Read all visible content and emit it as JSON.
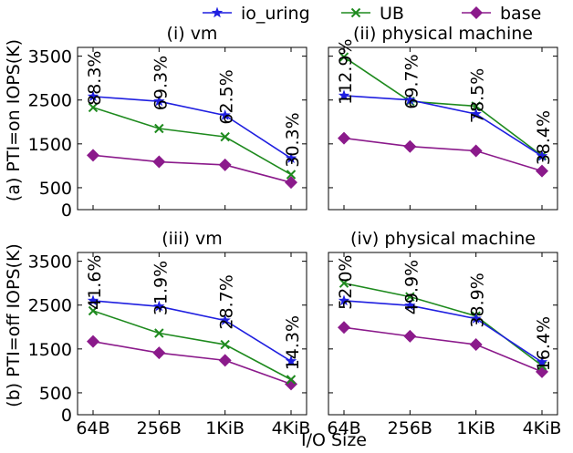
{
  "legend": {
    "placement": "top-center",
    "entries": [
      {
        "label": "io_uring",
        "color": "#1f1fe0",
        "marker": "star"
      },
      {
        "label": "UB",
        "color": "#1e8a1e",
        "marker": "x"
      },
      {
        "label": "base",
        "color": "#8b1a8b",
        "marker": "diamond"
      }
    ]
  },
  "shared": {
    "xlabel": "I/O Size",
    "row_labels": [
      "(a) PTI=on IOPS(K)",
      "(b) PTI=off IOPS(K)"
    ],
    "categories": [
      "64B",
      "256B",
      "1KiB",
      "4KiB"
    ],
    "yticks": [
      0,
      500,
      1500,
      2500,
      3500
    ],
    "ylim": [
      0,
      3700
    ]
  },
  "chart_data": [
    {
      "type": "line",
      "title": "(i) vm",
      "categories": [
        "64B",
        "256B",
        "1KiB",
        "4KiB"
      ],
      "ylim": [
        0,
        3700
      ],
      "series": [
        {
          "name": "io_uring",
          "values": [
            2580,
            2470,
            2150,
            1170
          ]
        },
        {
          "name": "UB",
          "values": [
            2330,
            1850,
            1660,
            800
          ]
        },
        {
          "name": "base",
          "values": [
            1240,
            1090,
            1020,
            620
          ]
        }
      ],
      "annotations": [
        "88.3%",
        "69.3%",
        "62.5%",
        "30.3%"
      ]
    },
    {
      "type": "line",
      "title": "(ii) physical machine",
      "categories": [
        "64B",
        "256B",
        "1KiB",
        "4KiB"
      ],
      "ylim": [
        0,
        3700
      ],
      "series": [
        {
          "name": "io_uring",
          "values": [
            2600,
            2500,
            2180,
            1220
          ]
        },
        {
          "name": "UB",
          "values": [
            3480,
            2470,
            2360,
            1230
          ]
        },
        {
          "name": "base",
          "values": [
            1630,
            1440,
            1340,
            880
          ]
        }
      ],
      "annotations": [
        "112.9%",
        "69.7%",
        "78.5%",
        "38.4%"
      ]
    },
    {
      "type": "line",
      "title": "(iii) vm",
      "categories": [
        "64B",
        "256B",
        "1KiB",
        "4KiB"
      ],
      "ylim": [
        0,
        3700
      ],
      "series": [
        {
          "name": "io_uring",
          "values": [
            2600,
            2470,
            2150,
            1220
          ]
        },
        {
          "name": "UB",
          "values": [
            2370,
            1860,
            1600,
            800
          ]
        },
        {
          "name": "base",
          "values": [
            1670,
            1410,
            1240,
            700
          ]
        }
      ],
      "annotations": [
        "41.6%",
        "31.9%",
        "28.7%",
        "14.3%"
      ]
    },
    {
      "type": "line",
      "title": "(iv) physical machine",
      "categories": [
        "64B",
        "256B",
        "1KiB",
        "4KiB"
      ],
      "ylim": [
        0,
        3700
      ],
      "series": [
        {
          "name": "io_uring",
          "values": [
            2600,
            2490,
            2190,
            1200
          ]
        },
        {
          "name": "UB",
          "values": [
            3000,
            2690,
            2250,
            1120
          ]
        },
        {
          "name": "base",
          "values": [
            1990,
            1790,
            1600,
            980
          ]
        }
      ],
      "annotations": [
        "52.0%",
        "49.9%",
        "38.9%",
        "16.4%"
      ]
    }
  ]
}
